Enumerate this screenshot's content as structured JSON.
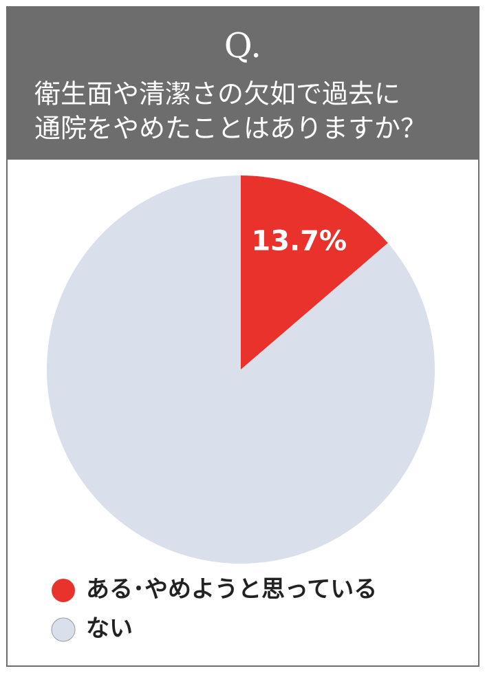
{
  "chart_data": {
    "type": "pie",
    "title": "Q.",
    "question": [
      "衛生面や清潔さの欠如で過去に",
      "通院をやめたことはありますか？"
    ],
    "categories": [
      "ある･やめようと思っている",
      "ない"
    ],
    "values": [
      13.7,
      86.3
    ],
    "value_labels": [
      "13.7%",
      null
    ],
    "colors": [
      "#e8322b",
      "#d9e0eb"
    ]
  }
}
